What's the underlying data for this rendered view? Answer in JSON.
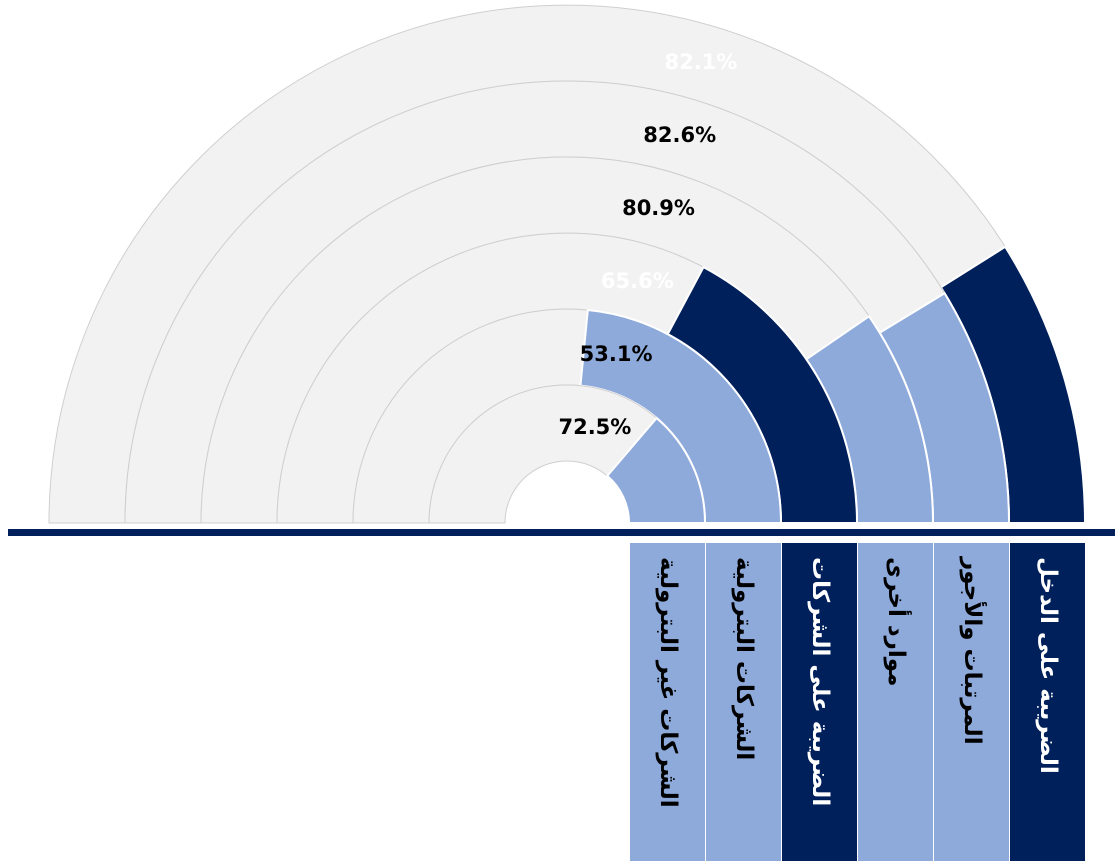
{
  "chart_data": {
    "type": "radial-progress",
    "max": 100,
    "rings": [
      {
        "label": "الضريبة على الدخل",
        "value": 82.1,
        "value_label": "82.1%",
        "color": "#00205b",
        "text_color": "#ffffff"
      },
      {
        "label": "المرتبات والأجور",
        "value": 82.6,
        "value_label": "82.6%",
        "color": "#8eaadb",
        "text_color": "#000000"
      },
      {
        "label": "موارد أخرى",
        "value": 80.9,
        "value_label": "80.9%",
        "color": "#8eaadb",
        "text_color": "#000000"
      },
      {
        "label": "الضريبة على الشركات",
        "value": 65.6,
        "value_label": "65.6%",
        "color": "#00205b",
        "text_color": "#ffffff"
      },
      {
        "label": "الشركات البترولية",
        "value": 53.1,
        "value_label": "53.1%",
        "color": "#8eaadb",
        "text_color": "#000000"
      },
      {
        "label": "الشركات غير البترولية",
        "value": 72.5,
        "value_label": "72.5%",
        "color": "#8eaadb",
        "text_color": "#000000"
      }
    ],
    "background_color": "#f2f2f2",
    "baseline_color": "#00205b"
  }
}
